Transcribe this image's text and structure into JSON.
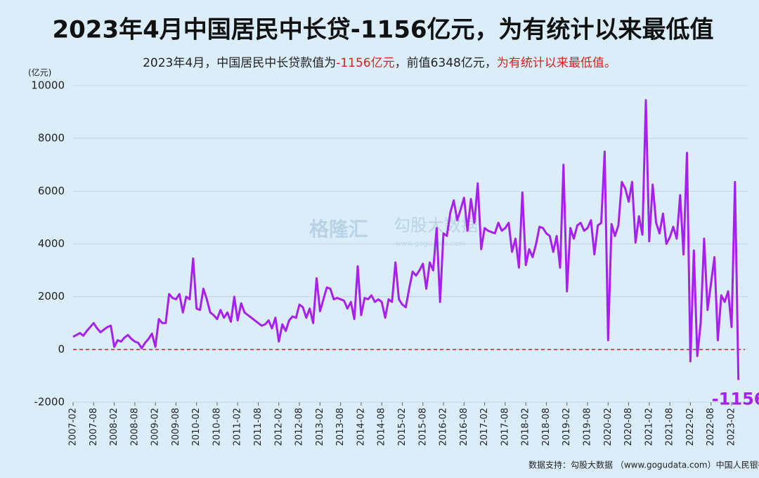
{
  "chart_data": {
    "type": "line",
    "title": "2023年4月中国居民中长贷-1156亿元，为有统计以来最低值",
    "subtitle": [
      {
        "text": "2023年4月，中国居民中长贷款值为",
        "color": "#222222"
      },
      {
        "text": "-1156亿元",
        "color": "#e0201c"
      },
      {
        "text": "，前值6348亿元，",
        "color": "#222222"
      },
      {
        "text": "为有统计以来最低值。",
        "color": "#e0201c"
      }
    ],
    "y_unit": "(亿元)",
    "source": "数据支持：勾股大数据 （www.gogudata.com）中国人民银行",
    "watermark": [
      "格隆汇",
      "勾股大数据",
      "www.gogudata.com"
    ],
    "categories": [
      "2007-02",
      null,
      null,
      null,
      null,
      null,
      "2007-08",
      null,
      null,
      null,
      null,
      null,
      "2008-02",
      null,
      null,
      null,
      null,
      null,
      "2008-08",
      null,
      null,
      null,
      null,
      null,
      "2009-02",
      null,
      null,
      null,
      null,
      null,
      "2009-08",
      null,
      null,
      null,
      null,
      null,
      "2010-02",
      null,
      null,
      null,
      null,
      null,
      "2010-08",
      null,
      null,
      null,
      null,
      null,
      "2011-02",
      null,
      null,
      null,
      null,
      null,
      "2011-08",
      null,
      null,
      null,
      null,
      null,
      "2012-02",
      null,
      null,
      null,
      null,
      null,
      "2012-08",
      null,
      null,
      null,
      null,
      null,
      "2013-02",
      null,
      null,
      null,
      null,
      null,
      "2013-08",
      null,
      null,
      null,
      null,
      null,
      "2014-02",
      null,
      null,
      null,
      null,
      null,
      "2014-08",
      null,
      null,
      null,
      null,
      null,
      "2015-02",
      null,
      null,
      null,
      null,
      null,
      "2015-08",
      null,
      null,
      null,
      null,
      null,
      "2016-02",
      null,
      null,
      null,
      null,
      null,
      "2016-08",
      null,
      null,
      null,
      null,
      null,
      "2017-02",
      null,
      null,
      null,
      null,
      null,
      "2017-08",
      null,
      null,
      null,
      null,
      null,
      "2018-02",
      null,
      null,
      null,
      null,
      null,
      "2018-08",
      null,
      null,
      null,
      null,
      null,
      "2019-02",
      null,
      null,
      null,
      null,
      null,
      "2019-08",
      null,
      null,
      null,
      null,
      null,
      "2020-02",
      null,
      null,
      null,
      null,
      null,
      "2020-08",
      null,
      null,
      null,
      null,
      null,
      "2021-02",
      null,
      null,
      null,
      null,
      null,
      "2021-08",
      null,
      null,
      null,
      null,
      null,
      "2022-02",
      null,
      null,
      null,
      null,
      null,
      "2022-08",
      null,
      null,
      null,
      null,
      null,
      "2023-02",
      null,
      null
    ],
    "series": [
      {
        "name": "居民中长贷",
        "color": "#a81ff0",
        "values": [
          480,
          550,
          620,
          520,
          700,
          850,
          1000,
          800,
          650,
          750,
          850,
          900,
          100,
          350,
          300,
          450,
          550,
          400,
          300,
          250,
          50,
          250,
          400,
          600,
          100,
          1150,
          1000,
          1000,
          2100,
          1950,
          1900,
          2100,
          1400,
          2000,
          1900,
          3450,
          1550,
          1500,
          2300,
          1900,
          1400,
          1300,
          1150,
          1500,
          1200,
          1400,
          1050,
          2000,
          1100,
          1750,
          1400,
          1300,
          1200,
          1100,
          1000,
          900,
          950,
          1100,
          800,
          1200,
          300,
          950,
          700,
          1100,
          1250,
          1200,
          1700,
          1600,
          1200,
          1550,
          1000,
          2700,
          1450,
          1900,
          2350,
          2300,
          1900,
          1950,
          1900,
          1850,
          1550,
          1800,
          1150,
          3150,
          1300,
          1950,
          1900,
          2050,
          1800,
          1900,
          1800,
          1200,
          1900,
          1800,
          3300,
          1900,
          1700,
          1600,
          2300,
          2950,
          2800,
          3000,
          3250,
          2300,
          3300,
          3000,
          4600,
          1800,
          4400,
          4300,
          5200,
          5650,
          4900,
          5300,
          5750,
          4500,
          5700,
          4800,
          6300,
          3800,
          4600,
          4500,
          4450,
          4400,
          4800,
          4500,
          4600,
          4800,
          3700,
          4200,
          3100,
          5950,
          3200,
          3800,
          3500,
          4000,
          4650,
          4600,
          4400,
          4300,
          3700,
          4300,
          3100,
          7000,
          2200,
          4600,
          4200,
          4700,
          4800,
          4500,
          4600,
          4900,
          3600,
          4700,
          4800,
          7500,
          350,
          4750,
          4300,
          4700,
          6350,
          6100,
          5600,
          6350,
          4050,
          5050,
          4350,
          9450,
          4100,
          6250,
          4800,
          4400,
          5150,
          4000,
          4250,
          4650,
          4200,
          5850,
          3600,
          7450,
          -450,
          3750,
          -250,
          1000,
          4200,
          1500,
          2500,
          3500,
          350,
          2050,
          1800,
          2200,
          850,
          6348,
          -1156
        ]
      }
    ],
    "ylim": [
      -2000,
      10000
    ],
    "yticks": [
      -2000,
      0,
      2000,
      4000,
      6000,
      8000,
      10000
    ],
    "grid": true,
    "reference_line": {
      "value": 0,
      "color": "#d42020"
    }
  }
}
